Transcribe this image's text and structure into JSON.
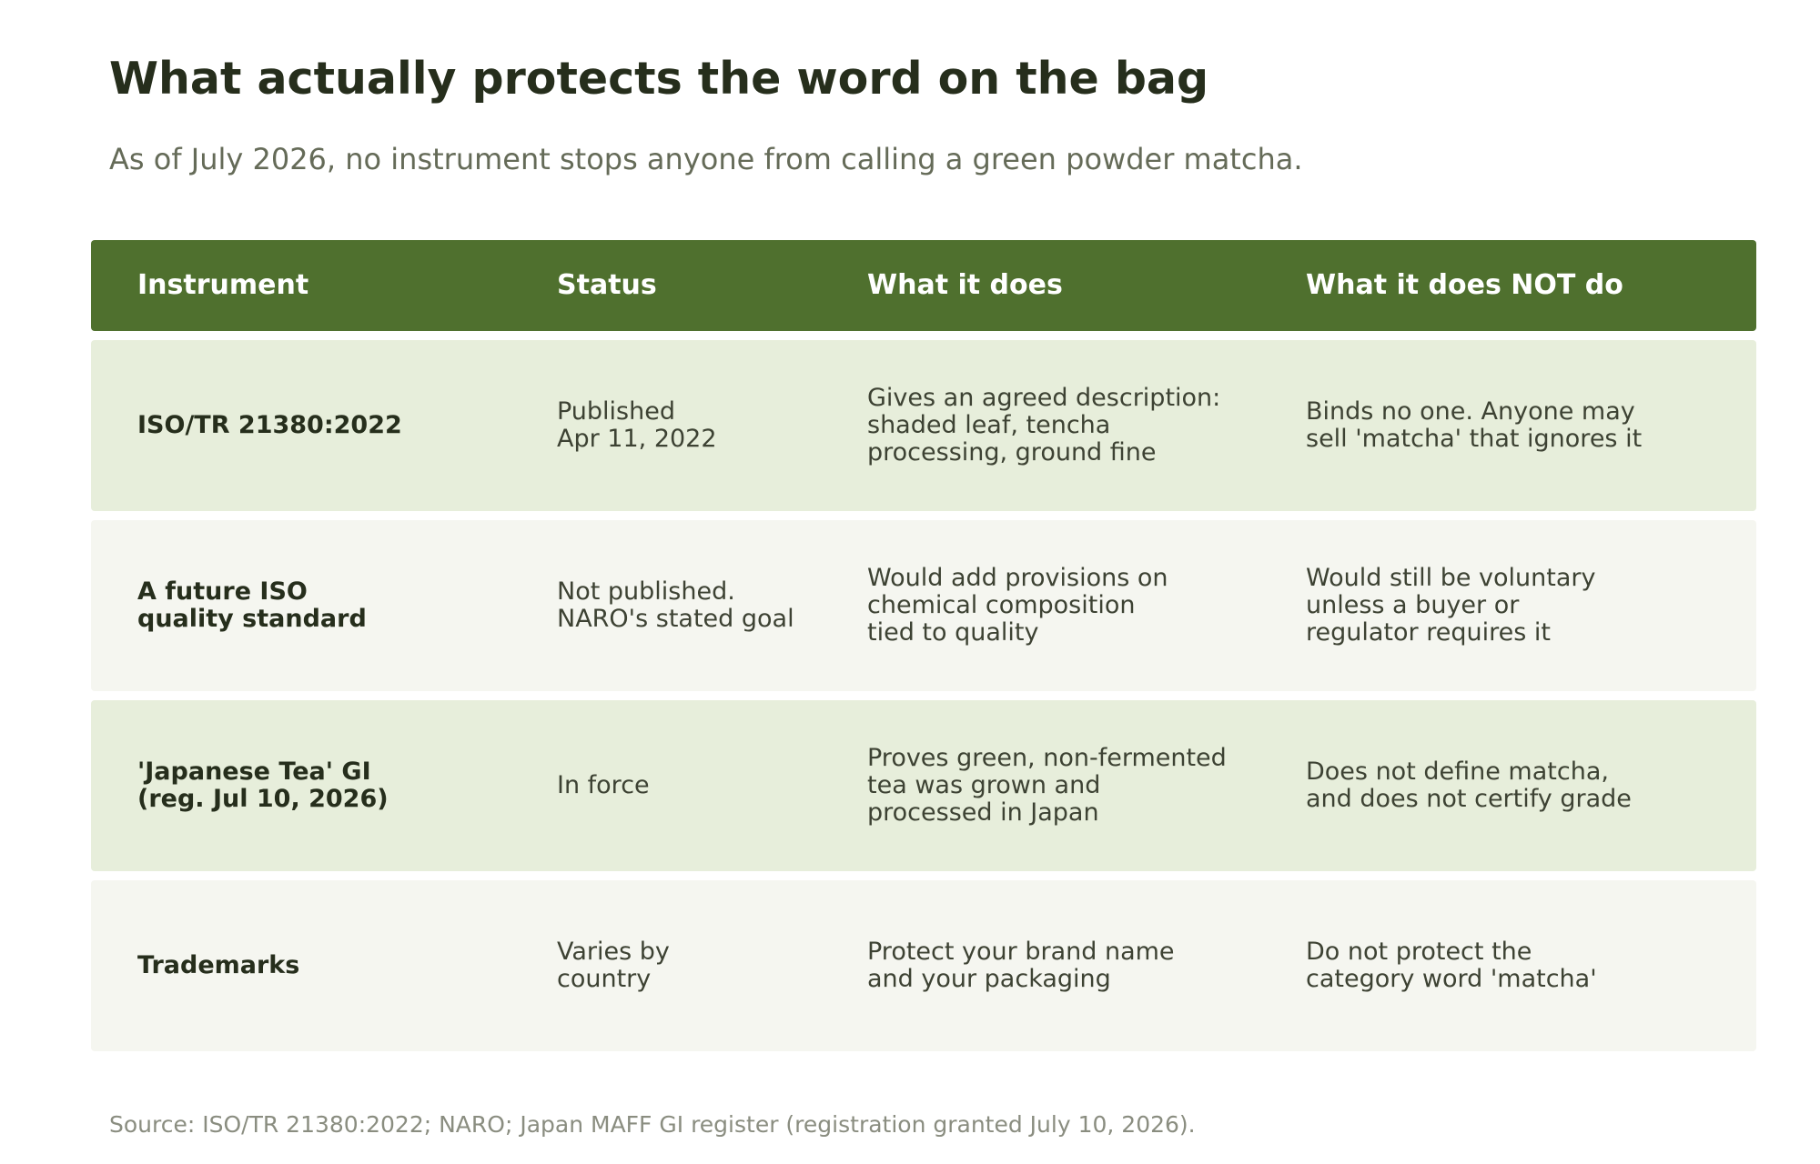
{
  "title": "What actually protects the word on the bag",
  "subtitle": "As of July 2026, no instrument stops anyone from calling a green powder matcha.",
  "table": {
    "headers": [
      "Instrument",
      "Status",
      "What it does",
      "What it does NOT do"
    ],
    "rows": [
      {
        "instrument": "ISO/TR 21380:2022",
        "status": "Published\nApr 11, 2022",
        "does": "Gives an agreed description:\nshaded leaf, tencha\nprocessing, ground fine",
        "does_not": "Binds no one. Anyone may\nsell 'matcha' that ignores it"
      },
      {
        "instrument": "A future ISO\nquality standard",
        "status": "Not published.\nNARO's stated goal",
        "does": "Would add provisions on\nchemical composition\ntied to quality",
        "does_not": "Would still be voluntary\nunless a buyer or\nregulator requires it"
      },
      {
        "instrument": "'Japanese Tea' GI\n(reg. Jul 10, 2026)",
        "status": "In force",
        "does": "Proves green, non-fermented\ntea was grown and\nprocessed in Japan",
        "does_not": "Does not define matcha,\nand does not certify grade"
      },
      {
        "instrument": "Trademarks",
        "status": "Varies by\ncountry",
        "does": "Protect your brand name\nand your packaging",
        "does_not": "Do not protect the\ncategory word 'matcha'"
      }
    ]
  },
  "source": "Source: ISO/TR 21380:2022; NARO; Japan MAFF GI register (registration granted July 10, 2026).",
  "colors": {
    "header_bg": "#4f702e",
    "row_shade_a": "#e7eedb",
    "row_shade_b": "#f5f6f0",
    "title": "#262e1c"
  }
}
